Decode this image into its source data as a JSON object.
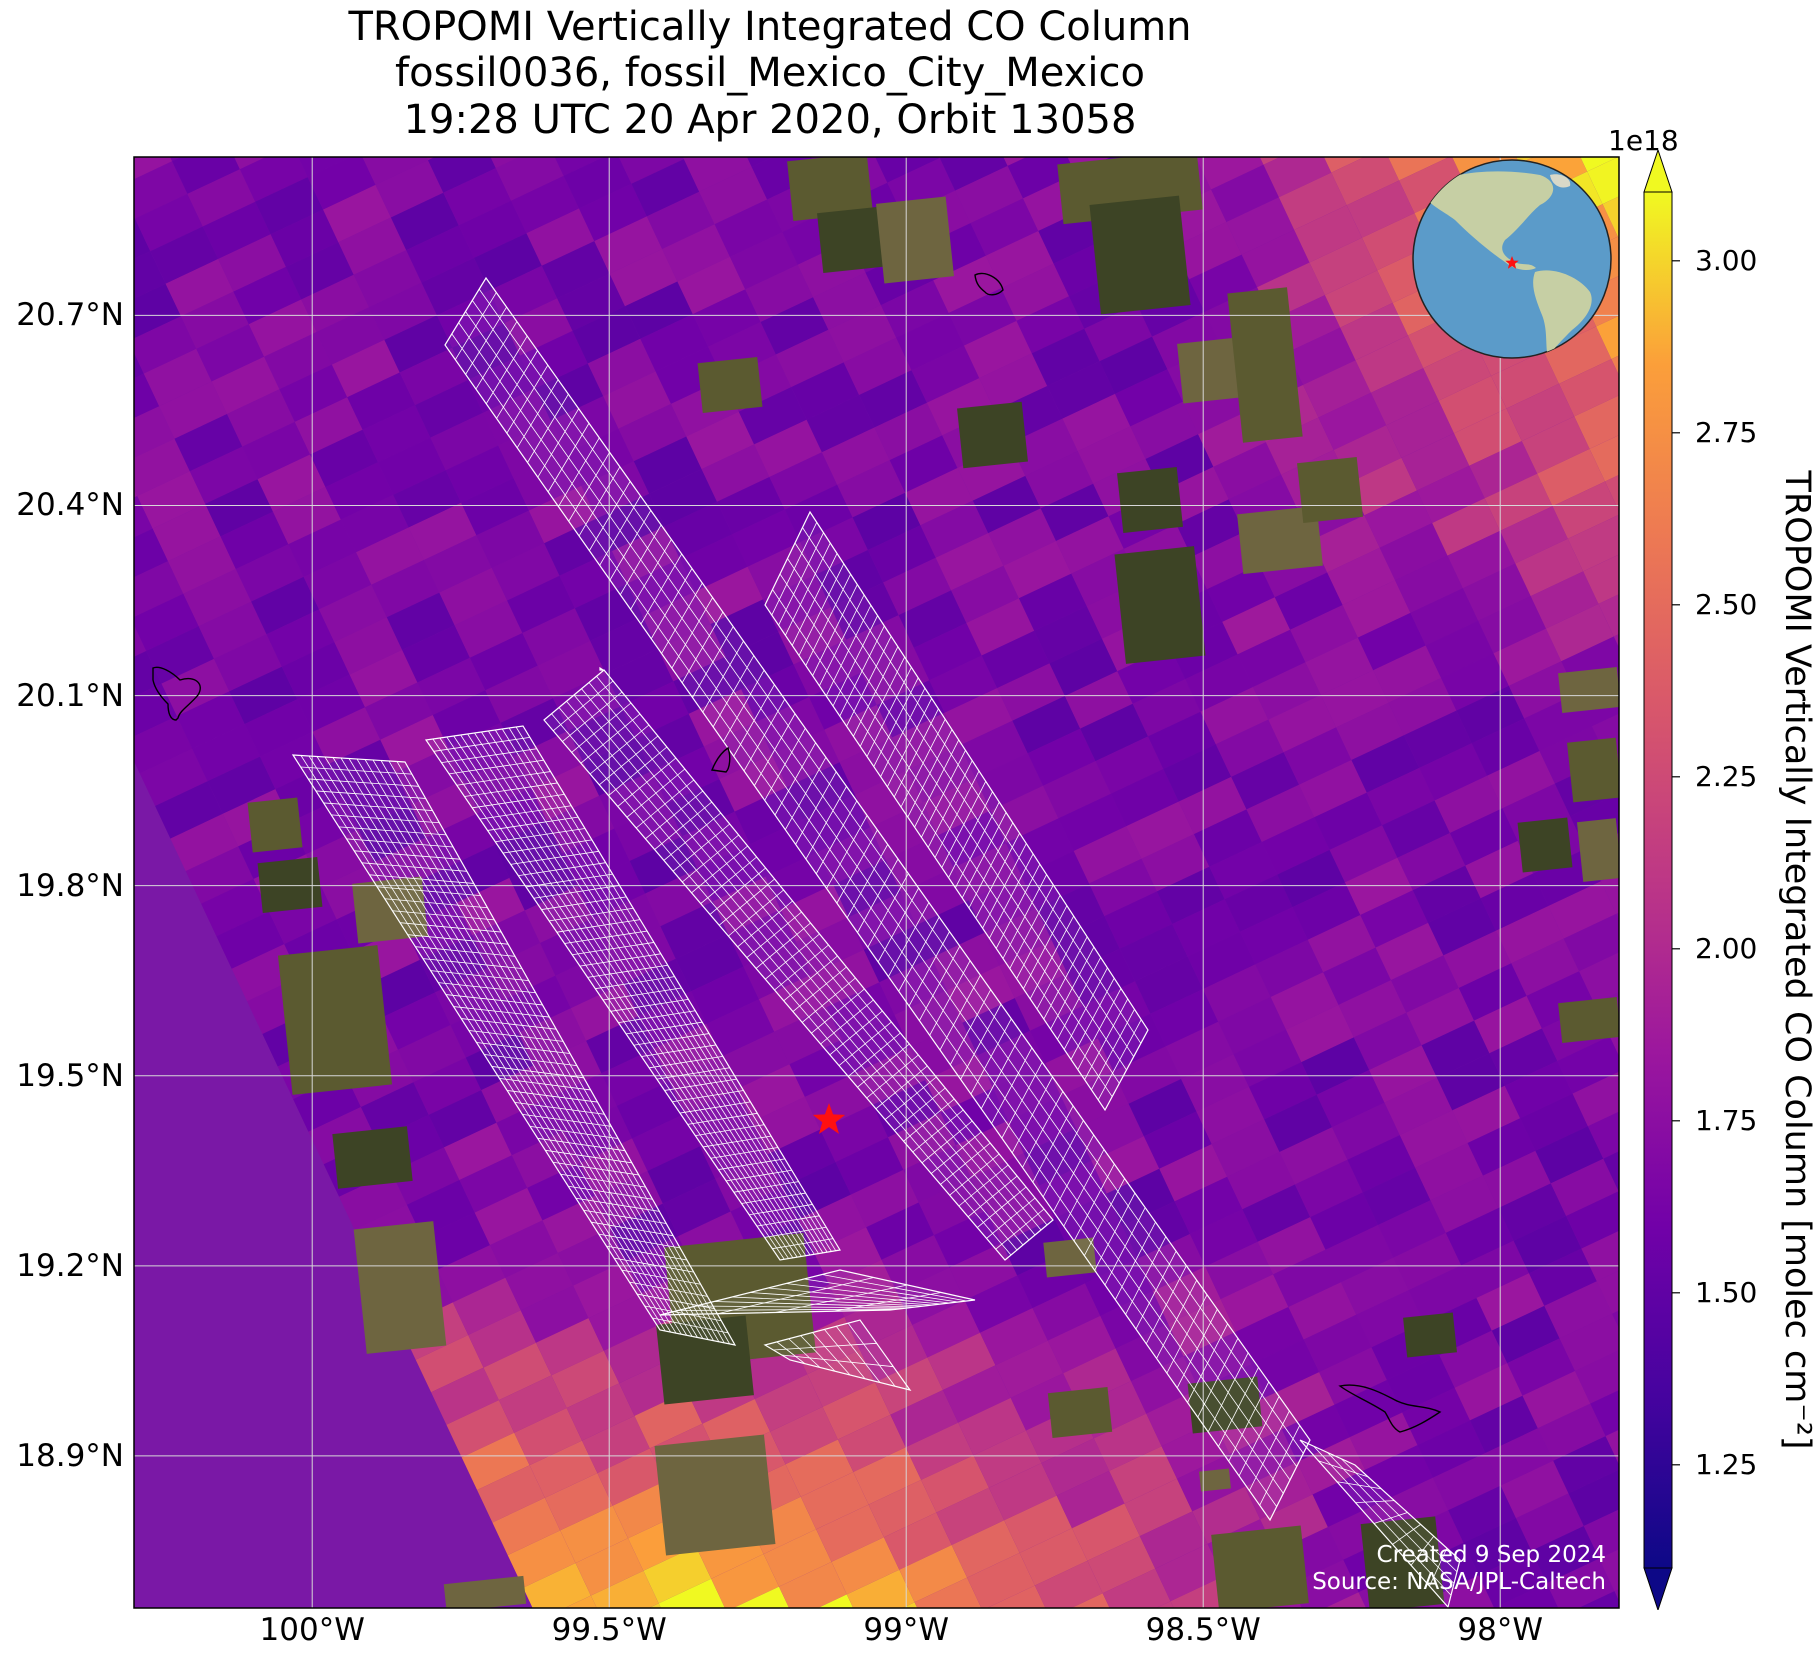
{
  "title": {
    "line1": "TROPOMI Vertically Integrated CO Column",
    "line2": "fossil0036, fossil_Mexico_City_Mexico",
    "line3": "19:28 UTC 20 Apr 2020, Orbit 13058"
  },
  "map": {
    "lon_range": [
      -100.3,
      -97.8
    ],
    "lat_range": [
      18.66,
      20.95
    ],
    "lat_ticks": [
      {
        "value": 20.7,
        "label": "20.7°N"
      },
      {
        "value": 20.4,
        "label": "20.4°N"
      },
      {
        "value": 20.1,
        "label": "20.1°N"
      },
      {
        "value": 19.8,
        "label": "19.8°N"
      },
      {
        "value": 19.5,
        "label": "19.5°N"
      },
      {
        "value": 19.2,
        "label": "19.2°N"
      },
      {
        "value": 18.9,
        "label": "18.9°N"
      }
    ],
    "lon_ticks": [
      {
        "value": -100.0,
        "label": "100°W"
      },
      {
        "value": -99.5,
        "label": "99.5°W"
      },
      {
        "value": -99.0,
        "label": "99°W"
      },
      {
        "value": -98.5,
        "label": "98.5°W"
      },
      {
        "value": -98.0,
        "label": "98°W"
      }
    ],
    "target": {
      "name": "fossil_Mexico_City_Mexico",
      "lon": -99.13,
      "lat": 19.43,
      "marker": "red-star"
    },
    "grid": true,
    "inset": "globe-western-hemisphere"
  },
  "colorbar": {
    "label": "TROPOMI Vertically Integrated CO Column [molec cm⁻²]",
    "exponent": "1e18",
    "range": [
      1.1,
      3.1
    ],
    "colormap": "plasma",
    "extend": "both",
    "ticks": [
      {
        "value": 1.25,
        "label": "1.25"
      },
      {
        "value": 1.5,
        "label": "1.50"
      },
      {
        "value": 1.75,
        "label": "1.75"
      },
      {
        "value": 2.0,
        "label": "2.00"
      },
      {
        "value": 2.25,
        "label": "2.25"
      },
      {
        "value": 2.5,
        "label": "2.50"
      },
      {
        "value": 2.75,
        "label": "2.75"
      },
      {
        "value": 3.0,
        "label": "3.00"
      }
    ]
  },
  "credit": {
    "line1": "Created 9 Sep 2024",
    "line2": "Source: NASA/JPL-Caltech"
  },
  "colors": {
    "star": "#ff1010",
    "gridline": "#d8d8d8",
    "swath": "#ffffff",
    "ocean": "#5b9bc9",
    "land": "#c6cfa4"
  }
}
